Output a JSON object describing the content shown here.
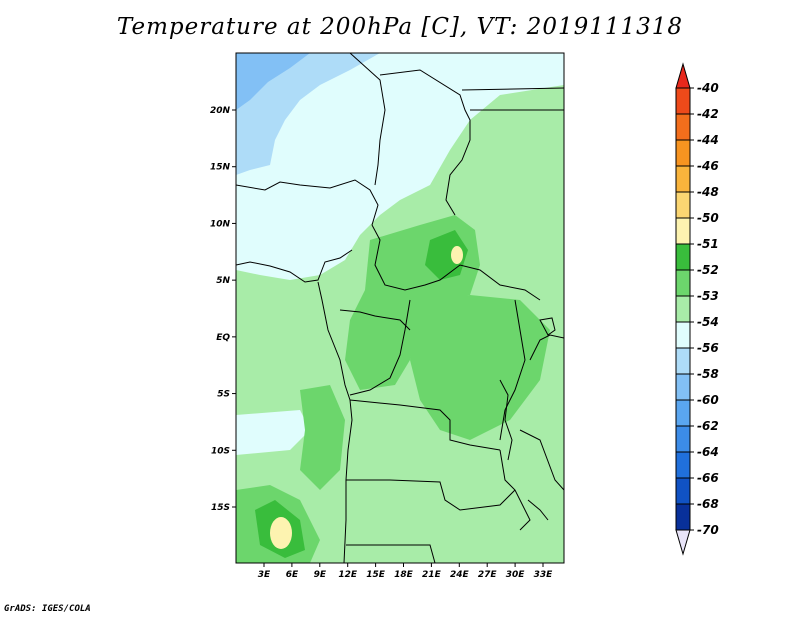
{
  "title": "Temperature at 200hPa [C], VT: 2019111318",
  "credit": "GrADS: IGES/COLA",
  "map": {
    "lat_labels": [
      "20N",
      "15N",
      "10N",
      "5N",
      "EQ",
      "5S",
      "10S",
      "15S"
    ],
    "lon_labels": [
      "3E",
      "6E",
      "9E",
      "12E",
      "15E",
      "18E",
      "21E",
      "24E",
      "27E",
      "30E",
      "33E"
    ],
    "lat_values": [
      20,
      15,
      10,
      5,
      0,
      -5,
      -10,
      -15
    ],
    "lon_values": [
      3,
      6,
      9,
      12,
      15,
      18,
      21,
      24,
      27,
      30,
      33
    ],
    "lon_range": [
      0,
      35
    ],
    "lat_range": [
      -20,
      25
    ]
  },
  "colorbar": {
    "labels": [
      "-40",
      "-42",
      "-44",
      "-46",
      "-48",
      "-50",
      "-51",
      "-52",
      "-53",
      "-54",
      "-56",
      "-58",
      "-60",
      "-62",
      "-64",
      "-66",
      "-68",
      "-70"
    ],
    "colors": [
      "#e8281c",
      "#ee4a1a",
      "#f36e1c",
      "#f79420",
      "#f9b43c",
      "#fbd672",
      "#fdf3b0",
      "#39bd3c",
      "#6cd66c",
      "#a8eca8",
      "#e0fdfd",
      "#aedcf8",
      "#82c0f5",
      "#5aa6f0",
      "#3c8ce8",
      "#2070dc",
      "#1052c4",
      "#08309a",
      "#081a6c"
    ]
  }
}
